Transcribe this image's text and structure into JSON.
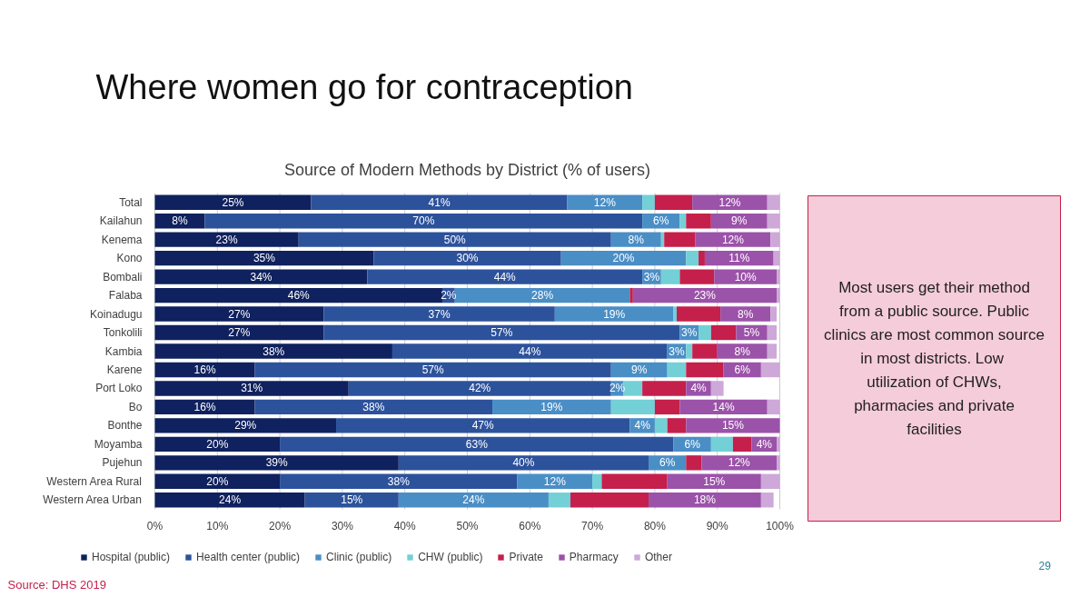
{
  "chart_data": {
    "type": "bar",
    "orientation": "horizontal",
    "stacked": true,
    "title": "Where women go for contraception",
    "subtitle": "Source of Modern Methods by District (% of users)",
    "categories": [
      "Total",
      "Kailahun",
      "Kenema",
      "Kono",
      "Bombali",
      "Falaba",
      "Koinadugu",
      "Tonkolili",
      "Kambia",
      "Karene",
      "Port Loko",
      "Bo",
      "Bonthe",
      "Moyamba",
      "Pujehun",
      "Western Area Rural",
      "Western Area Urban"
    ],
    "series": [
      {
        "name": "Hospital (public)",
        "color": "#0f215e",
        "values": [
          25,
          8,
          23,
          35,
          34,
          46,
          27,
          27,
          38,
          16,
          31,
          16,
          29,
          20,
          39,
          20,
          24
        ],
        "value_labels": [
          "25%",
          "8%",
          "23%",
          "35%",
          "34%",
          "46%",
          "27%",
          "27%",
          "38%",
          "16%",
          "31%",
          "16%",
          "29%",
          "20%",
          "39%",
          "20%",
          "24%"
        ]
      },
      {
        "name": "Health center (public)",
        "color": "#2d529c",
        "values": [
          41,
          70,
          50,
          30,
          44,
          2,
          37,
          57,
          44,
          57,
          42,
          38,
          47,
          63,
          40,
          38,
          15
        ],
        "value_labels": [
          "41%",
          "70%",
          "50%",
          "30%",
          "44%",
          "2%",
          "37%",
          "57%",
          "44%",
          "57%",
          "42%",
          "38%",
          "47%",
          "63%",
          "40%",
          "38%",
          "15%"
        ]
      },
      {
        "name": "Clinic (public)",
        "color": "#4a8ec6",
        "values": [
          12,
          6,
          8,
          20,
          3,
          28,
          19,
          3,
          3,
          9,
          2,
          19,
          4,
          6,
          6,
          12,
          24
        ],
        "value_labels": [
          "12%",
          "6%",
          "8%",
          "20%",
          "3%",
          "28%",
          "19%",
          "3%",
          "3%",
          "9%",
          "2%",
          "19%",
          "4%",
          "6%",
          "6%",
          "12%",
          "24%"
        ]
      },
      {
        "name": "CHW (public)",
        "color": "#72d0d6",
        "values": [
          2,
          1,
          0.5,
          2,
          3,
          0,
          0.5,
          2,
          1,
          3,
          3,
          7,
          2,
          3.5,
          0,
          1.5,
          3.5
        ]
      },
      {
        "name": "Private",
        "color": "#c51f4b",
        "values": [
          6,
          4,
          5,
          1,
          5.5,
          0.5,
          7,
          4,
          4,
          6,
          7,
          4,
          3,
          3,
          2.5,
          10.5,
          12.5
        ]
      },
      {
        "name": "Pharmacy",
        "color": "#9b52a9",
        "values": [
          12,
          9,
          12,
          11,
          10,
          23,
          8,
          5,
          8,
          6,
          4,
          14,
          15,
          4,
          12,
          15,
          18
        ],
        "value_labels": [
          "12%",
          "9%",
          "12%",
          "11%",
          "10%",
          "23%",
          "8%",
          "5%",
          "8%",
          "6%",
          "4%",
          "14%",
          "15%",
          "4%",
          "12%",
          "15%",
          "18%"
        ]
      },
      {
        "name": "Other",
        "color": "#cda8d8",
        "values": [
          2,
          2,
          1.5,
          1,
          0.5,
          0.5,
          1,
          1.5,
          1.5,
          3,
          2,
          2,
          0,
          0.5,
          0.5,
          3,
          2
        ]
      }
    ],
    "xlim": [
      0,
      100
    ],
    "xticks": [
      {
        "value": 0,
        "label": "0%"
      },
      {
        "value": 10,
        "label": "10%"
      },
      {
        "value": 20,
        "label": "20%"
      },
      {
        "value": 30,
        "label": "30%"
      },
      {
        "value": 40,
        "label": "40%"
      },
      {
        "value": 50,
        "label": "50%"
      },
      {
        "value": 60,
        "label": "60%"
      },
      {
        "value": 70,
        "label": "70%"
      },
      {
        "value": 80,
        "label": "80%"
      },
      {
        "value": 90,
        "label": "90%"
      },
      {
        "value": 100,
        "label": "100%"
      }
    ],
    "grid": "x",
    "legend": "bottom",
    "annotations": [
      "Most users get their method from a public source. Public clinics are most common source in most districts.  Low utilization of CHWs, pharmacies and private facilities",
      "Source: DHS 2019",
      "29"
    ]
  }
}
